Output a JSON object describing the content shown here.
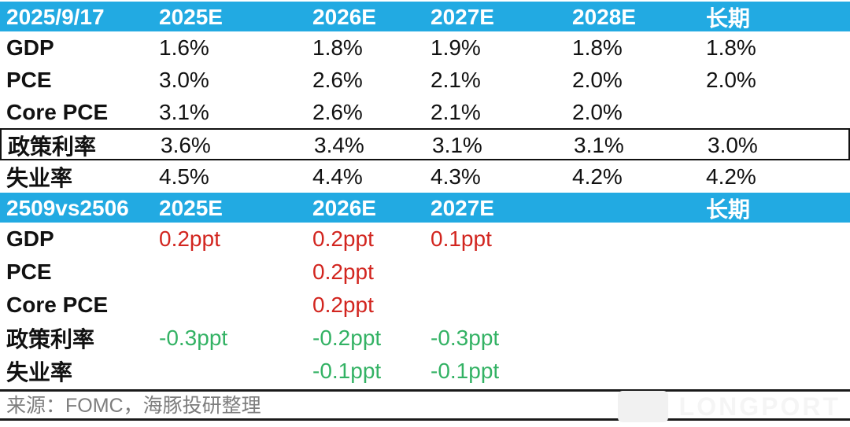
{
  "colors": {
    "header_bg": "#22aae2",
    "header_text": "#ffffff",
    "body_text": "#111111",
    "increase_red": "#d2251f",
    "decrease_green": "#33b264",
    "source_text": "#7d7d7d",
    "divider": "#1a1a1a",
    "watermark": "#f1f1f1"
  },
  "chart_data": [
    {
      "type": "table",
      "title": "2025/9/17",
      "header": [
        "2025/9/17",
        "2025E",
        "2026E",
        "2027E",
        "2028E",
        "长期"
      ],
      "rows": [
        {
          "label": "GDP",
          "values": [
            "1.6%",
            "1.8%",
            "1.9%",
            "1.8%",
            "1.8%"
          ]
        },
        {
          "label": "PCE",
          "values": [
            "3.0%",
            "2.6%",
            "2.1%",
            "2.0%",
            "2.0%"
          ]
        },
        {
          "label": "Core PCE",
          "values": [
            "3.1%",
            "2.6%",
            "2.1%",
            "2.0%",
            ""
          ]
        },
        {
          "label": "政策利率",
          "values": [
            "3.6%",
            "3.4%",
            "3.1%",
            "3.1%",
            "3.0%"
          ],
          "highlighted": true
        },
        {
          "label": "失业率",
          "values": [
            "4.5%",
            "4.4%",
            "4.3%",
            "4.2%",
            "4.2%"
          ]
        }
      ]
    },
    {
      "type": "table",
      "title": "2509vs2506",
      "header": [
        "2509vs2506",
        "2025E",
        "2026E",
        "2027E",
        "",
        "长期"
      ],
      "rows": [
        {
          "label": "GDP",
          "values": [
            "0.2ppt",
            "0.2ppt",
            "0.1ppt",
            "",
            ""
          ],
          "trend": [
            "up",
            "up",
            "up",
            "",
            ""
          ]
        },
        {
          "label": "PCE",
          "values": [
            "",
            "0.2ppt",
            "",
            "",
            ""
          ],
          "trend": [
            "",
            "up",
            "",
            "",
            ""
          ]
        },
        {
          "label": "Core PCE",
          "values": [
            "",
            "0.2ppt",
            "",
            "",
            ""
          ],
          "trend": [
            "",
            "up",
            "",
            "",
            ""
          ]
        },
        {
          "label": "政策利率",
          "values": [
            "-0.3ppt",
            "-0.2ppt",
            "-0.3ppt",
            "",
            ""
          ],
          "trend": [
            "down",
            "down",
            "down",
            "",
            ""
          ]
        },
        {
          "label": "失业率",
          "values": [
            "",
            "-0.1ppt",
            "-0.1ppt",
            "",
            ""
          ],
          "trend": [
            "",
            "down",
            "down",
            "",
            ""
          ]
        }
      ]
    }
  ],
  "footer": {
    "source": "来源：FOMC，海豚投研整理"
  },
  "watermark": {
    "brand": "LONGPORT"
  }
}
